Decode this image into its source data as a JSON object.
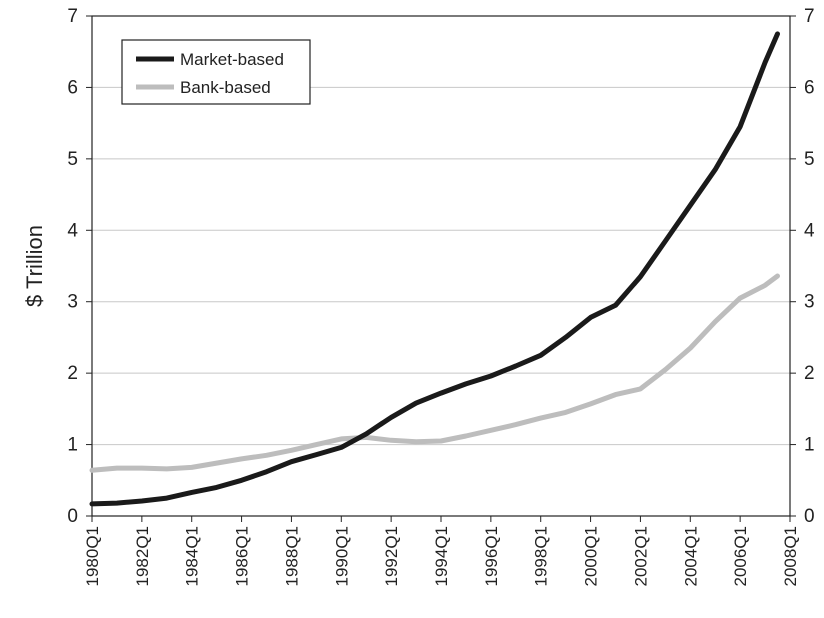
{
  "chart_data": {
    "type": "line",
    "y_label": "$ Trillion",
    "x": [
      1980,
      1981,
      1982,
      1983,
      1984,
      1985,
      1986,
      1987,
      1988,
      1989,
      1990,
      1991,
      1992,
      1993,
      1994,
      1995,
      1996,
      1997,
      1998,
      1999,
      2000,
      2001,
      2002,
      2003,
      2004,
      2005,
      2006,
      2007,
      2007.5
    ],
    "series": [
      {
        "name": "Market-based",
        "color": "#1a1a1a",
        "values": [
          0.17,
          0.18,
          0.21,
          0.25,
          0.33,
          0.4,
          0.5,
          0.62,
          0.76,
          0.86,
          0.96,
          1.15,
          1.38,
          1.58,
          1.72,
          1.85,
          1.96,
          2.1,
          2.25,
          2.5,
          2.78,
          2.95,
          3.35,
          3.85,
          4.35,
          4.85,
          5.45,
          6.35,
          6.75
        ]
      },
      {
        "name": "Bank-based",
        "color": "#bdbdbd",
        "values": [
          0.64,
          0.67,
          0.67,
          0.66,
          0.68,
          0.74,
          0.8,
          0.85,
          0.92,
          1.0,
          1.08,
          1.1,
          1.06,
          1.04,
          1.05,
          1.12,
          1.2,
          1.28,
          1.37,
          1.45,
          1.57,
          1.7,
          1.78,
          2.05,
          2.35,
          2.72,
          3.05,
          3.23,
          3.36
        ]
      }
    ],
    "xlim": [
      1980,
      2008
    ],
    "xticks": [
      {
        "value": 1980,
        "label": "1980Q1"
      },
      {
        "value": 1982,
        "label": "1982Q1"
      },
      {
        "value": 1984,
        "label": "1984Q1"
      },
      {
        "value": 1986,
        "label": "1986Q1"
      },
      {
        "value": 1988,
        "label": "1988Q1"
      },
      {
        "value": 1990,
        "label": "1990Q1"
      },
      {
        "value": 1992,
        "label": "1992Q1"
      },
      {
        "value": 1994,
        "label": "1994Q1"
      },
      {
        "value": 1996,
        "label": "1996Q1"
      },
      {
        "value": 1998,
        "label": "1998Q1"
      },
      {
        "value": 2000,
        "label": "2000Q1"
      },
      {
        "value": 2002,
        "label": "2002Q1"
      },
      {
        "value": 2004,
        "label": "2004Q1"
      },
      {
        "value": 2006,
        "label": "2006Q1"
      },
      {
        "value": 2008,
        "label": "2008Q1"
      }
    ],
    "ylim": [
      0,
      7
    ],
    "yticks": [
      0,
      1,
      2,
      3,
      4,
      5,
      6,
      7
    ],
    "y2lim": [
      0,
      7
    ],
    "y2ticks": [
      0,
      1,
      2,
      3,
      4,
      5,
      6,
      7
    ],
    "grid": true
  }
}
